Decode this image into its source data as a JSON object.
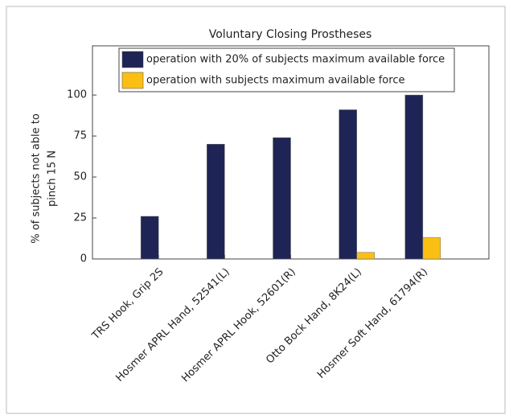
{
  "chart_data": {
    "type": "bar",
    "title": "Voluntary Closing Prostheses",
    "ylabel": [
      "% of subjects not able to",
      "pinch 15 N"
    ],
    "categories": [
      "TRS Hook, Grip 2S",
      "Hosmer APRL Hand, 52541(L)",
      "Hosmer APRL Hook, 52601(R)",
      "Otto Bock Hand, 8K24(L)",
      "Hosmer Soft Hand, 61794(R)"
    ],
    "series": [
      {
        "name": "operation with 20% of subjects maximum available force",
        "color": "#1f2456",
        "values": [
          26,
          70,
          74,
          91,
          100
        ]
      },
      {
        "name": "operation with subjects maximum available force",
        "color": "#fbbf14",
        "values": [
          0,
          0,
          0,
          4,
          13
        ]
      }
    ],
    "ylim": [
      0,
      130
    ],
    "yticks": [
      0,
      25,
      50,
      75,
      100
    ],
    "legend": "top"
  }
}
